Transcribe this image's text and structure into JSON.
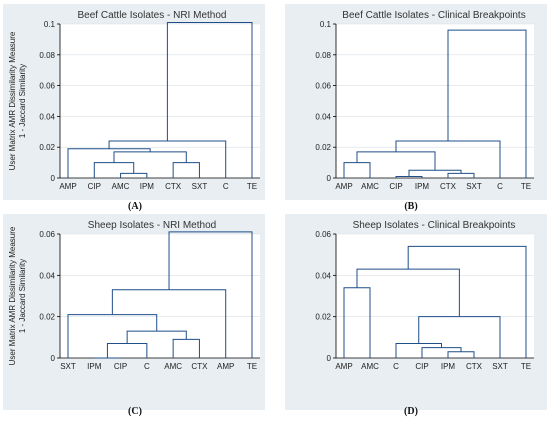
{
  "chart_data": [
    {
      "type": "dendrogram",
      "panel_label": "(A)",
      "title": "Beef Cattle Isolates - NRI Method",
      "ylabel_line1": "User Matrix AMR Dissimilarity Measure",
      "ylabel_line2": "1 - Jaccard Similarity",
      "ylim": [
        0,
        0.1
      ],
      "yticks": [
        "0",
        "0.02",
        "0.04",
        "0.06",
        "0.08",
        "0.1"
      ],
      "ytick_values": [
        0,
        0.02,
        0.04,
        0.06,
        0.08,
        0.1
      ],
      "leaves": [
        "AMP",
        "CIP",
        "AMC",
        "IPM",
        "CTX",
        "SXT",
        "C",
        "TE"
      ],
      "merges": [
        [
          2,
          3,
          0.003
        ],
        [
          1,
          8,
          0.01
        ],
        [
          4,
          5,
          0.01
        ],
        [
          9,
          10,
          0.017
        ],
        [
          0,
          11,
          0.019
        ],
        [
          6,
          12,
          0.024
        ],
        [
          7,
          13,
          0.101
        ]
      ]
    },
    {
      "type": "dendrogram",
      "panel_label": "(B)",
      "title": "Beef Cattle Isolates - Clinical Breakpoints",
      "ylabel_line1": "",
      "ylabel_line2": "",
      "ylim": [
        0,
        0.1
      ],
      "yticks": [
        "0",
        "0.02",
        "0.04",
        "0.06",
        "0.08",
        "0.1"
      ],
      "ytick_values": [
        0,
        0.02,
        0.04,
        0.06,
        0.08,
        0.1
      ],
      "leaves": [
        "AMP",
        "AMC",
        "CIP",
        "IPM",
        "CTX",
        "SXT",
        "C",
        "TE"
      ],
      "merges": [
        [
          2,
          3,
          0.001
        ],
        [
          4,
          5,
          0.003
        ],
        [
          8,
          9,
          0.005
        ],
        [
          0,
          1,
          0.01
        ],
        [
          11,
          10,
          0.017
        ],
        [
          12,
          6,
          0.024
        ],
        [
          13,
          7,
          0.096
        ]
      ]
    },
    {
      "type": "dendrogram",
      "panel_label": "(C)",
      "title": "Sheep Isolates - NRI Method",
      "ylabel_line1": "User Matrix AMR Dissimilarity Measure",
      "ylabel_line2": "1 - Jaccard Similarity",
      "ylim": [
        0,
        0.06
      ],
      "yticks": [
        "0",
        "0.02",
        "0.04",
        "0.06"
      ],
      "ytick_values": [
        0,
        0.02,
        0.04,
        0.06
      ],
      "leaves": [
        "SXT",
        "IPM",
        "CIP",
        "C",
        "AMC",
        "CTX",
        "AMP",
        "TE"
      ],
      "merges": [
        [
          1,
          2,
          0.0
        ],
        [
          8,
          3,
          0.007
        ],
        [
          4,
          5,
          0.009
        ],
        [
          9,
          10,
          0.013
        ],
        [
          0,
          11,
          0.021
        ],
        [
          12,
          6,
          0.033
        ],
        [
          13,
          7,
          0.061
        ]
      ]
    },
    {
      "type": "dendrogram",
      "panel_label": "(D)",
      "title": "Sheep Isolates - Clinical Breakpoints",
      "ylabel_line1": "",
      "ylabel_line2": "",
      "ylim": [
        0,
        0.06
      ],
      "yticks": [
        "0",
        "0.02",
        "0.04",
        "0.06"
      ],
      "ytick_values": [
        0,
        0.02,
        0.04,
        0.06
      ],
      "leaves": [
        "AMP",
        "AMC",
        "C",
        "CIP",
        "IPM",
        "CTX",
        "SXT",
        "TE"
      ],
      "merges": [
        [
          0,
          1,
          0.034
        ],
        [
          4,
          5,
          0.003
        ],
        [
          3,
          9,
          0.005
        ],
        [
          2,
          10,
          0.007
        ],
        [
          11,
          6,
          0.02
        ],
        [
          8,
          12,
          0.043
        ],
        [
          13,
          7,
          0.054
        ]
      ]
    }
  ],
  "colors": {
    "panel_background": "#e8eef1",
    "plot_background": "#ffffff",
    "branch": "#1f4e89",
    "grid": "#d8dfe3"
  }
}
